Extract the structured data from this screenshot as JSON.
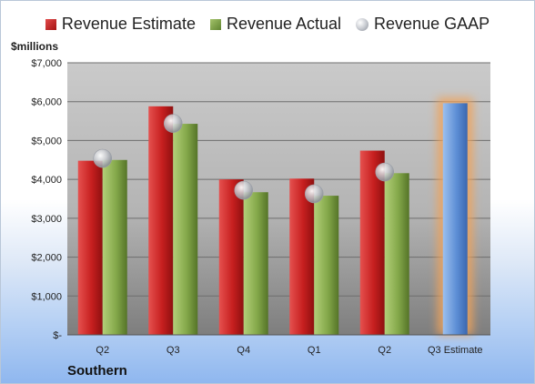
{
  "legend": {
    "estimate": "Revenue Estimate",
    "actual": "Revenue Actual",
    "gaap": "Revenue GAAP"
  },
  "unit_label": "$millions",
  "company": "Southern",
  "colors": {
    "estimate": "#c41e1e",
    "actual": "#7fa346",
    "gaap": "#a9adb4",
    "forecast": "#5b8fd4",
    "forecast_glow": "#f0a35a",
    "plot_top": "#c9c9c9",
    "plot_bottom": "#8a8a8a"
  },
  "chart_data": {
    "type": "bar",
    "categories": [
      "Q2",
      "Q3",
      "Q4",
      "Q1",
      "Q2",
      "Q3 Estimate"
    ],
    "series": [
      {
        "name": "Revenue Estimate",
        "values": [
          4480,
          5880,
          4000,
          4020,
          4740,
          null
        ]
      },
      {
        "name": "Revenue Actual",
        "values": [
          4500,
          5430,
          3670,
          3580,
          4160,
          null
        ]
      },
      {
        "name": "Revenue GAAP",
        "values": [
          4540,
          5440,
          3720,
          3630,
          4190,
          null
        ]
      }
    ],
    "forecast": {
      "category": "Q3 Estimate",
      "value": 5960
    },
    "ylabel": "$millions",
    "ylim": [
      0,
      7000
    ],
    "yticks": [
      0,
      1000,
      2000,
      3000,
      4000,
      5000,
      6000,
      7000
    ],
    "ytick_labels": [
      "$-",
      "$1,000",
      "$2,000",
      "$3,000",
      "$4,000",
      "$5,000",
      "$6,000",
      "$7,000"
    ],
    "grid": true,
    "legend_position": "top"
  }
}
